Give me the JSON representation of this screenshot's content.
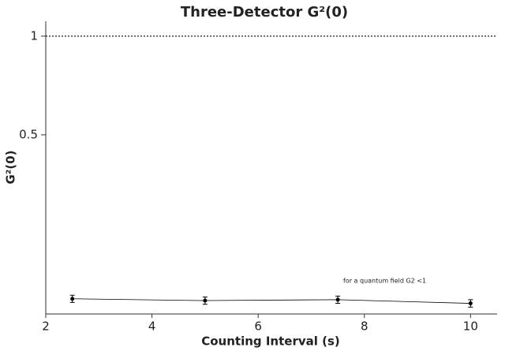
{
  "chart_data": {
    "type": "line",
    "title": "Three-Detector G²(0)",
    "xlabel": "Counting Interval (s)",
    "ylabel": "G²(0)",
    "annotation": "for a quantum field G2 <1",
    "x": [
      2.5,
      5,
      7.5,
      10
    ],
    "series": [
      {
        "name": "G²(0)",
        "color": "#000000",
        "values": [
          0.158,
          0.156,
          0.157,
          0.153
        ],
        "errors": [
          0.004,
          0.004,
          0.004,
          0.004
        ]
      }
    ],
    "xlim": [
      2,
      10.5
    ],
    "xticks": [
      2,
      4,
      6,
      8,
      10
    ],
    "ylim": [
      0.142,
      1.11
    ],
    "yticks": [
      0.5,
      1
    ],
    "yscale": "log",
    "reference_line": 1
  }
}
